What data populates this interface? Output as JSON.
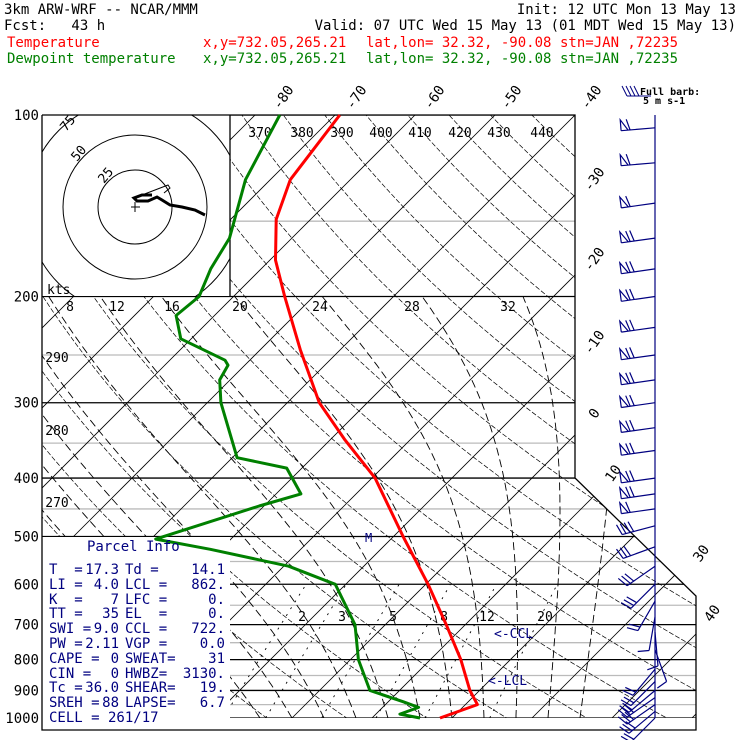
{
  "header": {
    "model": "3km ARW-WRF -- NCAR/MMM",
    "init": "Init: 12 UTC Mon 13 May 13",
    "fcst": "Fcst:   43 h",
    "valid": "Valid: 07 UTC Wed 15 May 13 (01 MDT Wed 15 May 13)"
  },
  "legend": [
    {
      "name": "Temperature",
      "xy": "x,y=732.05,265.21",
      "latlon": "lat,lon= 32.32, -90.08",
      "stn": "stn=JAN ,72235",
      "color": "#ff0000"
    },
    {
      "name": "Dewpoint temperature",
      "xy": "x,y=732.05,265.21",
      "latlon": "lat,lon= 32.32, -90.08",
      "stn": "stn=JAN ,72235",
      "color": "#008000"
    }
  ],
  "barb_legend": {
    "line1": "Full barb:",
    "line2": "5 m s-1"
  },
  "hodograph": {
    "units": "kts",
    "rings": [
      "25",
      "50",
      "75"
    ]
  },
  "parcel_info": {
    "title": "Parcel Info",
    "rows": [
      [
        "T  =",
        "17.3",
        "Td =",
        "14.1"
      ],
      [
        "LI =",
        "4.0",
        "LCL =",
        "862."
      ],
      [
        "K  =",
        "7",
        "LFC =",
        "0."
      ],
      [
        "TT =",
        "35",
        "EL  =",
        "0."
      ],
      [
        "SWI =",
        "9.0",
        "CCL =",
        "722."
      ],
      [
        "PW =",
        "2.11",
        "VGP =",
        "0.0"
      ],
      [
        "CAPE =",
        "0",
        "SWEAT=",
        "31"
      ],
      [
        "CIN =",
        "0",
        "HWBZ=",
        "3130."
      ],
      [
        "Tc =",
        "36.0",
        "SHEAR=",
        "19."
      ],
      [
        "SREH =",
        "88",
        "LAPSE=",
        "6.7"
      ]
    ],
    "cell": "CELL = 261/17"
  },
  "annotations": {
    "ccl": "<-CCL",
    "lcl": "<-LCL",
    "m": "M"
  },
  "chart_data": {
    "type": "line",
    "title": "Skew-T log-P sounding",
    "yscale": "log",
    "ylim": [
      1000,
      100
    ],
    "pressure_labels": [
      "100",
      "200",
      "300",
      "400",
      "500",
      "600",
      "700",
      "800",
      "900",
      "1000"
    ],
    "pressure_levels": [
      100,
      200,
      300,
      400,
      500,
      600,
      700,
      800,
      900,
      1000
    ],
    "minor_pressure_levels": [
      150,
      250,
      350,
      450,
      550,
      650,
      750,
      850,
      950
    ],
    "isotherm_labels_top": [
      "-80",
      "-70",
      "-60",
      "-50",
      "-40"
    ],
    "isotherm_labels_right": [
      "-30",
      "-20",
      "-10",
      "0",
      "10",
      "30",
      "40"
    ],
    "theta_labels": [
      "370",
      "380",
      "390",
      "400",
      "410",
      "420",
      "430",
      "440"
    ],
    "theta_labels_left": [
      "290",
      "280",
      "270"
    ],
    "row_labels_200": [
      "8",
      "12",
      "16",
      "20",
      "24",
      "28",
      "32"
    ],
    "mixing_ratio_labels": [
      "2",
      "3",
      "5",
      "8",
      "12",
      "20"
    ],
    "series": [
      {
        "name": "Temperature",
        "color": "#ff0000",
        "p": [
          100,
          128,
          149,
          174,
          200,
          245,
          300,
          346,
          400,
          500,
          600,
          700,
          800,
          900,
          950,
          1000
        ],
        "t": [
          -69.4,
          -67.5,
          -64.3,
          -59.3,
          -53.6,
          -45,
          -36,
          -28.1,
          -19.6,
          -8.8,
          0.3,
          7.6,
          13.8,
          18.8,
          21.5,
          18.5
        ]
      },
      {
        "name": "Dewpoint temperature",
        "color": "#008000",
        "p": [
          100,
          128,
          160,
          180,
          200,
          215,
          235,
          255,
          260,
          275,
          300,
          370,
          385,
          425,
          445,
          505,
          525,
          560,
          600,
          700,
          800,
          900,
          940,
          960,
          985,
          1000
        ],
        "t": [
          -76.9,
          -73.1,
          -67.8,
          -66.3,
          -64.3,
          -64.8,
          -61.3,
          -53.1,
          -52.1,
          -51.3,
          -48.3,
          -39.4,
          -31.9,
          -26.9,
          -30.6,
          -39.4,
          -31.3,
          -19.4,
          -11.3,
          -3.8,
          1.0,
          6.3,
          11.9,
          14.5,
          13.0,
          16.0
        ]
      }
    ],
    "wind_barbs": [
      {
        "p": 105,
        "dir": 265,
        "spd": 30
      },
      {
        "p": 120,
        "dir": 265,
        "spd": 30
      },
      {
        "p": 140,
        "dir": 262,
        "spd": 30
      },
      {
        "p": 160,
        "dir": 262,
        "spd": 35
      },
      {
        "p": 180,
        "dir": 262,
        "spd": 35
      },
      {
        "p": 200,
        "dir": 262,
        "spd": 35
      },
      {
        "p": 225,
        "dir": 262,
        "spd": 35
      },
      {
        "p": 250,
        "dir": 262,
        "spd": 35
      },
      {
        "p": 275,
        "dir": 262,
        "spd": 35
      },
      {
        "p": 300,
        "dir": 262,
        "spd": 35
      },
      {
        "p": 330,
        "dir": 262,
        "spd": 35
      },
      {
        "p": 360,
        "dir": 262,
        "spd": 35
      },
      {
        "p": 400,
        "dir": 262,
        "spd": 35
      },
      {
        "p": 425,
        "dir": 262,
        "spd": 35
      },
      {
        "p": 450,
        "dir": 262,
        "spd": 30
      },
      {
        "p": 480,
        "dir": 255,
        "spd": 20
      },
      {
        "p": 520,
        "dir": 250,
        "spd": 15
      },
      {
        "p": 560,
        "dir": 235,
        "spd": 15
      },
      {
        "p": 600,
        "dir": 225,
        "spd": 15
      },
      {
        "p": 640,
        "dir": 210,
        "spd": 10
      },
      {
        "p": 680,
        "dir": 190,
        "spd": 5
      },
      {
        "p": 720,
        "dir": 175,
        "spd": 5
      },
      {
        "p": 770,
        "dir": 160,
        "spd": 5
      },
      {
        "p": 830,
        "dir": 220,
        "spd": 10
      },
      {
        "p": 870,
        "dir": 225,
        "spd": 10
      },
      {
        "p": 900,
        "dir": 230,
        "spd": 10
      },
      {
        "p": 925,
        "dir": 235,
        "spd": 15
      },
      {
        "p": 950,
        "dir": 235,
        "spd": 15
      },
      {
        "p": 975,
        "dir": 230,
        "spd": 15
      },
      {
        "p": 1000,
        "dir": 225,
        "spd": 10
      }
    ]
  }
}
